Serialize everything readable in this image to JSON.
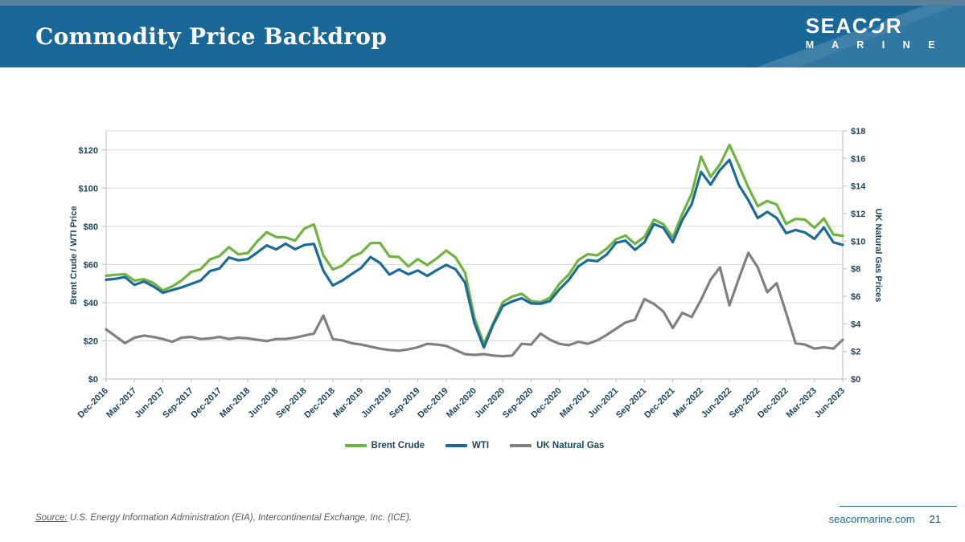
{
  "slide": {
    "title": "Commodity Price Backdrop",
    "logo": {
      "primary_pre": "SEAC",
      "primary_o": "O",
      "primary_post": "R",
      "secondary": "M A R I N E"
    },
    "footer": {
      "source_label": "Source:",
      "source_text": " U.S. Energy Information Administration (EIA), Intercontinental Exchange, Inc. (ICE).",
      "website": "seacormarine.com",
      "page_number": "21"
    }
  },
  "theme": {
    "banner_blue": "#196897",
    "banner_top_strip": "#5a809b",
    "navy_text": "#1d455c",
    "grid_gray": "#dadada",
    "axis_gray": "#c6c6c6",
    "source_gray": "#595959"
  },
  "chart_data": {
    "type": "line",
    "title": "",
    "legend_position": "bottom",
    "grid": "horizontal-major",
    "x_tick_every": 3,
    "draw_order": [
      2,
      0,
      1
    ],
    "left_axis": {
      "label": "Brent Crude / WTI Price",
      "min": 0,
      "max": 130,
      "step": 20,
      "tick_labels": [
        "$0",
        "$20",
        "$40",
        "$60",
        "$80",
        "$100",
        "$120"
      ]
    },
    "right_axis": {
      "label": "UK Natural Gas Prices",
      "min": 0,
      "max": 18,
      "step": 2,
      "tick_labels": [
        "$0",
        "$2",
        "$4",
        "$6",
        "$8",
        "$10",
        "$12",
        "$14",
        "$16",
        "$18"
      ]
    },
    "categories": [
      "Dec-2016",
      "Jan-2017",
      "Feb-2017",
      "Mar-2017",
      "Apr-2017",
      "May-2017",
      "Jun-2017",
      "Jul-2017",
      "Aug-2017",
      "Sep-2017",
      "Oct-2017",
      "Nov-2017",
      "Dec-2017",
      "Jan-2018",
      "Feb-2018",
      "Mar-2018",
      "Apr-2018",
      "May-2018",
      "Jun-2018",
      "Jul-2018",
      "Aug-2018",
      "Sep-2018",
      "Oct-2018",
      "Nov-2018",
      "Dec-2018",
      "Jan-2019",
      "Feb-2019",
      "Mar-2019",
      "Apr-2019",
      "May-2019",
      "Jun-2019",
      "Jul-2019",
      "Aug-2019",
      "Sep-2019",
      "Oct-2019",
      "Nov-2019",
      "Dec-2019",
      "Jan-2020",
      "Feb-2020",
      "Mar-2020",
      "Apr-2020",
      "May-2020",
      "Jun-2020",
      "Jul-2020",
      "Aug-2020",
      "Sep-2020",
      "Oct-2020",
      "Nov-2020",
      "Dec-2020",
      "Jan-2021",
      "Feb-2021",
      "Mar-2021",
      "Apr-2021",
      "May-2021",
      "Jun-2021",
      "Jul-2021",
      "Aug-2021",
      "Sep-2021",
      "Oct-2021",
      "Nov-2021",
      "Dec-2021",
      "Jan-2022",
      "Feb-2022",
      "Mar-2022",
      "Apr-2022",
      "May-2022",
      "Jun-2022",
      "Jul-2022",
      "Aug-2022",
      "Sep-2022",
      "Oct-2022",
      "Nov-2022",
      "Dec-2022",
      "Jan-2023",
      "Feb-2023",
      "Mar-2023",
      "Apr-2023",
      "May-2023",
      "Jun-2023"
    ],
    "series": [
      {
        "name": "Brent Crude",
        "color": "#70b440",
        "axis": "left",
        "values": [
          54.1,
          54.6,
          54.9,
          51.6,
          52.3,
          50.3,
          46.4,
          48.5,
          51.7,
          56.1,
          57.5,
          62.7,
          64.4,
          69.1,
          65.3,
          66.0,
          72.1,
          76.9,
          74.4,
          74.2,
          72.5,
          78.9,
          81.0,
          64.8,
          57.4,
          59.4,
          64.0,
          66.1,
          71.2,
          71.3,
          64.2,
          63.9,
          59.0,
          62.8,
          59.7,
          63.2,
          67.3,
          63.7,
          55.7,
          32.0,
          18.4,
          29.4,
          40.3,
          43.2,
          44.7,
          40.9,
          40.2,
          42.7,
          49.9,
          54.8,
          62.3,
          65.4,
          64.8,
          68.3,
          73.2,
          75.2,
          70.8,
          74.5,
          83.5,
          81.1,
          74.2,
          86.5,
          97.1,
          116.5,
          105.9,
          112.4,
          122.7,
          111.9,
          100.4,
          90.6,
          93.3,
          91.4,
          81.3,
          83.9,
          83.5,
          79.2,
          84.1,
          75.7,
          75.0
        ]
      },
      {
        "name": "WTI",
        "color": "#1a6b99",
        "axis": "left",
        "values": [
          52.0,
          52.5,
          53.4,
          49.3,
          51.1,
          48.5,
          45.2,
          46.6,
          48.0,
          49.8,
          51.6,
          56.6,
          57.9,
          63.7,
          62.2,
          62.8,
          66.3,
          70.0,
          67.9,
          70.9,
          68.0,
          70.2,
          70.8,
          56.7,
          49.0,
          51.6,
          55.0,
          58.2,
          63.9,
          60.8,
          54.7,
          57.4,
          54.8,
          56.9,
          54.0,
          57.0,
          59.8,
          57.5,
          50.5,
          29.2,
          16.5,
          28.6,
          38.3,
          40.7,
          42.3,
          39.6,
          39.4,
          40.9,
          47.0,
          52.0,
          59.0,
          62.3,
          61.7,
          65.2,
          71.4,
          72.5,
          67.7,
          71.6,
          81.2,
          79.2,
          71.7,
          83.2,
          91.6,
          108.5,
          101.8,
          109.5,
          114.8,
          101.6,
          93.7,
          84.3,
          87.6,
          84.4,
          76.4,
          78.1,
          76.8,
          73.4,
          79.4,
          71.6,
          70.3
        ]
      },
      {
        "name": "UK Natural Gas",
        "color": "#808080",
        "axis": "right",
        "values": [
          3.6,
          3.1,
          2.6,
          3.0,
          3.15,
          3.05,
          2.9,
          2.7,
          3.0,
          3.05,
          2.9,
          2.95,
          3.05,
          2.9,
          3.0,
          2.95,
          2.85,
          2.75,
          2.9,
          2.9,
          3.0,
          3.15,
          3.3,
          4.6,
          2.9,
          2.8,
          2.6,
          2.5,
          2.35,
          2.2,
          2.1,
          2.05,
          2.15,
          2.3,
          2.55,
          2.5,
          2.4,
          2.1,
          1.8,
          1.75,
          1.8,
          1.7,
          1.65,
          1.7,
          2.55,
          2.5,
          3.3,
          2.85,
          2.55,
          2.45,
          2.7,
          2.55,
          2.8,
          3.2,
          3.65,
          4.1,
          4.3,
          5.8,
          5.45,
          4.9,
          3.7,
          4.8,
          4.5,
          5.75,
          7.2,
          8.1,
          5.35,
          7.3,
          9.15,
          8.1,
          6.3,
          6.95,
          4.8,
          2.6,
          2.5,
          2.2,
          2.3,
          2.2,
          2.85
        ]
      }
    ]
  }
}
